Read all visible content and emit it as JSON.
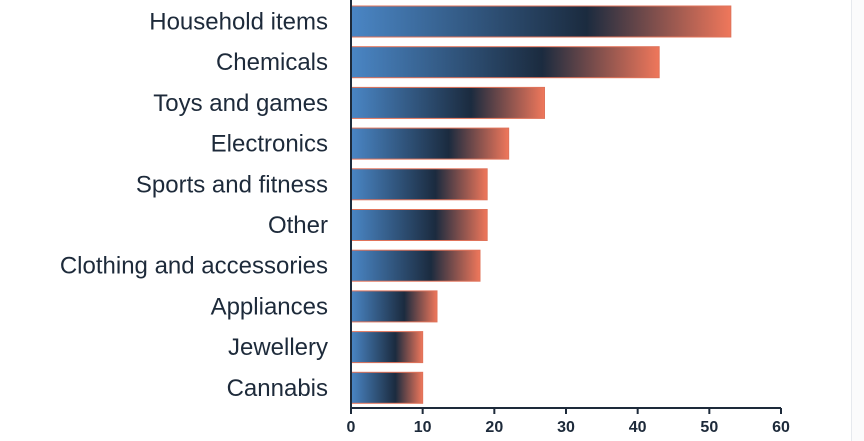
{
  "chart_data": {
    "type": "bar",
    "orientation": "horizontal",
    "categories": [
      "Household items",
      "Chemicals",
      "Toys and games",
      "Electronics",
      "Sports and fitness",
      "Other",
      "Clothing and accessories",
      "Appliances",
      "Jewellery",
      "Cannabis"
    ],
    "values": [
      53,
      43,
      27,
      22,
      19,
      19,
      18,
      12,
      10,
      10
    ],
    "xlim": [
      0,
      60
    ],
    "xticks": [
      0,
      10,
      20,
      30,
      40,
      50,
      60
    ],
    "grid": false,
    "colors": {
      "gradient_start": "#4a86c5",
      "gradient_mid": "#1b2b3f",
      "gradient_end": "#ef775b",
      "text": "#1d2a3a",
      "axis": "#1d2a3a"
    }
  }
}
